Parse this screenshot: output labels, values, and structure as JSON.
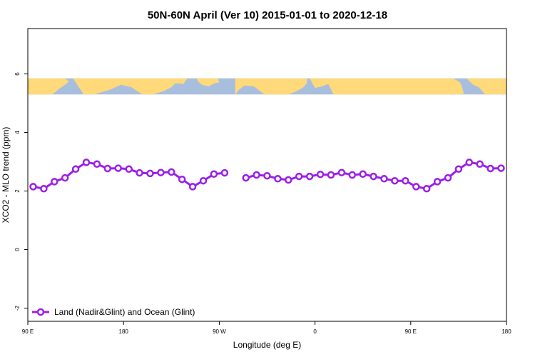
{
  "chart_data": {
    "type": "line",
    "title": "50N-60N April (Ver 10)   2015-01-01 to 2020-12-18",
    "xlabel": "Longitude (deg E)",
    "ylabel": "XCO2 - MLO trend (ppm)",
    "xlim": [
      90,
      450
    ],
    "ylim": [
      -2.45,
      7.55
    ],
    "x_ticks": [
      {
        "value": 90,
        "label": "90 E"
      },
      {
        "value": 162,
        "label": "180"
      },
      {
        "value": 234,
        "label": "90 W"
      },
      {
        "value": 306,
        "label": "0"
      },
      {
        "value": 378,
        "label": "90 E"
      },
      {
        "value": 450,
        "label": "180"
      }
    ],
    "y_ticks": [
      {
        "value": -2,
        "label": "-2"
      },
      {
        "value": 0,
        "label": "0"
      },
      {
        "value": 2,
        "label": "2"
      },
      {
        "value": 4,
        "label": "4"
      },
      {
        "value": 6,
        "label": "6"
      }
    ],
    "land_mask_band": {
      "ymin": 5.3,
      "ymax": 5.85,
      "land_color": "#FFD97A",
      "ocean_color": "#A8BEDD"
    },
    "series": [
      {
        "name": "Land (Nadir&Glint) and Ocean (Glint)",
        "color": "#9B1FE8",
        "segments": [
          {
            "x": [
              94,
              102,
              110,
              118,
              126,
              134,
              142,
              150,
              158,
              166,
              174,
              182,
              190,
              198,
              206,
              214,
              222,
              230,
              238
            ],
            "y": [
              2.15,
              2.08,
              2.32,
              2.45,
              2.75,
              2.98,
              2.92,
              2.77,
              2.78,
              2.75,
              2.62,
              2.6,
              2.63,
              2.65,
              2.4,
              2.15,
              2.35,
              2.58,
              2.62
            ]
          },
          {
            "x": [
              254,
              262,
              270,
              278,
              286,
              294,
              302,
              310,
              318,
              326,
              334,
              342,
              350,
              358,
              366,
              374,
              382,
              390,
              398,
              406,
              414,
              422,
              430,
              438,
              446
            ],
            "y": [
              2.45,
              2.55,
              2.52,
              2.42,
              2.38,
              2.5,
              2.5,
              2.57,
              2.55,
              2.63,
              2.55,
              2.58,
              2.5,
              2.42,
              2.35,
              2.35,
              2.15,
              2.08,
              2.32,
              2.45,
              2.75,
              2.98,
              2.92,
              2.77,
              2.78
            ]
          }
        ]
      }
    ],
    "legend": {
      "position": "bottom-left",
      "label": "Land (Nadir&Glint) and Ocean (Glint)"
    }
  }
}
